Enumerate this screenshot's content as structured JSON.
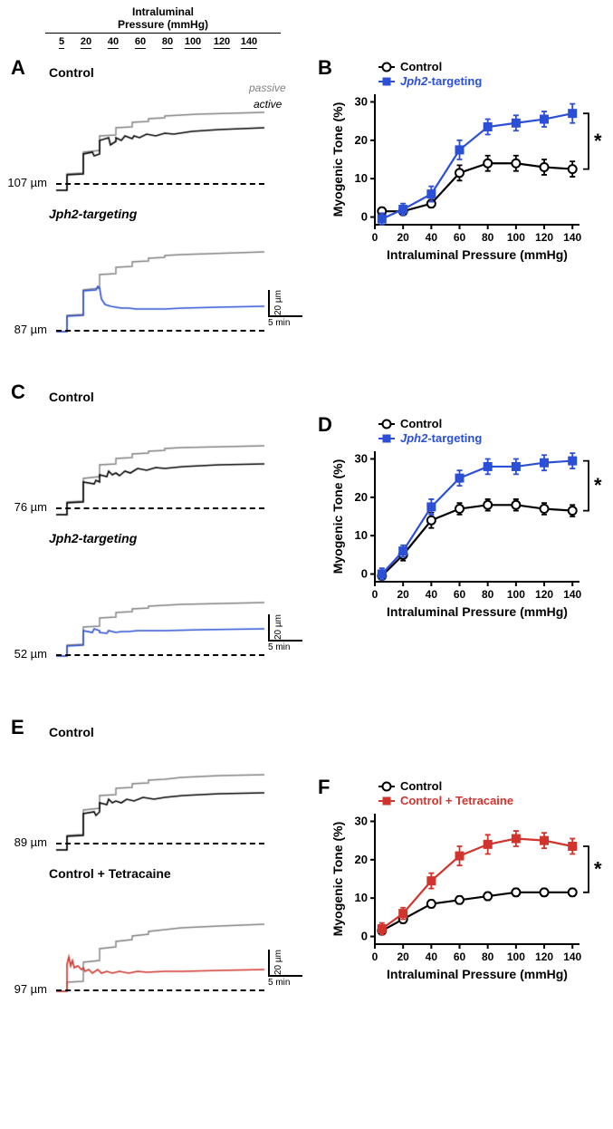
{
  "colors": {
    "control": "#000000",
    "jph2": "#2b4fd6",
    "tetracaine": "#d0342c",
    "passive": "#808080",
    "axis": "#000000",
    "bg": "#ffffff",
    "bracket": "#000000"
  },
  "typography": {
    "panel_label_pt": 22,
    "axis_label_pt": 14,
    "tick_pt": 12,
    "legend_pt": 13
  },
  "pressure_header": {
    "line1": "Intraluminal",
    "line2": "Pressure (mmHg)",
    "ticks": [
      "5",
      "20",
      "40",
      "60",
      "80",
      "100",
      "120",
      "140"
    ]
  },
  "panels": {
    "A": {
      "label": "A",
      "trace1": {
        "title": "Control",
        "baseline": "107 µm",
        "trace_color": "#000000"
      },
      "trace2": {
        "title": "Jph2-targeting",
        "baseline": "87 µm",
        "trace_color": "#2b4fd6"
      },
      "legend_passive": "passive",
      "legend_active": "active",
      "scalebar": {
        "y_label": "20 µm",
        "x_label": "5 min"
      }
    },
    "B": {
      "label": "B",
      "xlabel": "Intraluminal Pressure (mmHg)",
      "ylabel": "Myogenic Tone (%)",
      "xlim": [
        0,
        145
      ],
      "ylim": [
        -2,
        32
      ],
      "xtick_step": 20,
      "ytick_step": 10,
      "series": [
        {
          "name": "Control",
          "color": "#000000",
          "marker": "open-circle",
          "x": [
            5,
            20,
            40,
            60,
            80,
            100,
            120,
            140
          ],
          "y": [
            1.5,
            1.5,
            3.5,
            11.5,
            14,
            14,
            13,
            12.5
          ],
          "err": [
            1,
            1,
            1,
            2,
            2,
            2,
            2,
            2
          ]
        },
        {
          "name": "Jph2-targeting",
          "color": "#2b4fd6",
          "marker": "filled-square",
          "x": [
            5,
            20,
            40,
            60,
            80,
            100,
            120,
            140
          ],
          "y": [
            -0.5,
            2,
            6,
            17.5,
            23.5,
            24.5,
            25.5,
            27
          ],
          "err": [
            1.5,
            1.5,
            2,
            2.5,
            2,
            2,
            2,
            2.5
          ]
        }
      ],
      "legend": [
        {
          "label": "Control",
          "color": "#000000",
          "marker": "open-circle"
        },
        {
          "label": "Jph2-targeting",
          "color": "#2b4fd6",
          "marker": "filled-square",
          "italic": true
        }
      ],
      "significance": "*"
    },
    "C": {
      "label": "C",
      "trace1": {
        "title": "Control",
        "baseline": "76 µm",
        "trace_color": "#000000"
      },
      "trace2": {
        "title": "Jph2-targeting",
        "baseline": "52 µm",
        "trace_color": "#2b4fd6"
      },
      "scalebar": {
        "y_label": "20 µm",
        "x_label": "5 min"
      }
    },
    "D": {
      "label": "D",
      "xlabel": "Intraluminal Pressure (mmHg)",
      "ylabel": "Myogenic Tone (%)",
      "xlim": [
        0,
        145
      ],
      "ylim": [
        -2,
        32
      ],
      "xtick_step": 20,
      "ytick_step": 10,
      "series": [
        {
          "name": "Control",
          "color": "#000000",
          "marker": "open-circle",
          "x": [
            5,
            20,
            40,
            60,
            80,
            100,
            120,
            140
          ],
          "y": [
            -0.5,
            5,
            14,
            17,
            18,
            18,
            17,
            16.5
          ],
          "err": [
            1.5,
            1.5,
            2,
            1.5,
            1.5,
            1.5,
            1.5,
            1.5
          ]
        },
        {
          "name": "Jph2-targeting",
          "color": "#2b4fd6",
          "marker": "filled-square",
          "x": [
            5,
            20,
            40,
            60,
            80,
            100,
            120,
            140
          ],
          "y": [
            0,
            6,
            17.5,
            25,
            28,
            28,
            29,
            29.5
          ],
          "err": [
            1.5,
            1.5,
            2,
            2,
            2,
            2,
            2,
            2
          ]
        }
      ],
      "legend": [
        {
          "label": "Control",
          "color": "#000000",
          "marker": "open-circle"
        },
        {
          "label": "Jph2-targeting",
          "color": "#2b4fd6",
          "marker": "filled-square",
          "italic": true
        }
      ],
      "significance": "*"
    },
    "E": {
      "label": "E",
      "trace1": {
        "title": "Control",
        "baseline": "89 µm",
        "trace_color": "#000000"
      },
      "trace2": {
        "title": "Control + Tetracaine",
        "baseline": "97 µm",
        "trace_color": "#d0342c"
      },
      "scalebar": {
        "y_label": "20 µm",
        "x_label": "5 min"
      }
    },
    "F": {
      "label": "F",
      "xlabel": "Intraluminal Pressure (mmHg)",
      "ylabel": "Myogenic Tone (%)",
      "xlim": [
        0,
        145
      ],
      "ylim": [
        -2,
        32
      ],
      "xtick_step": 20,
      "ytick_step": 10,
      "series": [
        {
          "name": "Control",
          "color": "#000000",
          "marker": "open-circle",
          "x": [
            5,
            20,
            40,
            60,
            80,
            100,
            120,
            140
          ],
          "y": [
            1.5,
            4.5,
            8.5,
            9.5,
            10.5,
            11.5,
            11.5,
            11.5
          ],
          "err": [
            1,
            1,
            1,
            1,
            1,
            1,
            1,
            1
          ]
        },
        {
          "name": "Control + Tetracaine",
          "color": "#d0342c",
          "marker": "filled-square",
          "x": [
            5,
            20,
            40,
            60,
            80,
            100,
            120,
            140
          ],
          "y": [
            2,
            6,
            14.5,
            21,
            24,
            25.5,
            25,
            23.5
          ],
          "err": [
            1.5,
            1.5,
            2,
            2.5,
            2.5,
            2,
            2,
            2
          ]
        }
      ],
      "legend": [
        {
          "label": "Control",
          "color": "#000000",
          "marker": "open-circle"
        },
        {
          "label": "Control + Tetracaine",
          "color": "#d0342c",
          "marker": "filled-square"
        }
      ],
      "significance": "*"
    }
  },
  "traces": {
    "A1": {
      "passive": [
        [
          0,
          0
        ],
        [
          12,
          0
        ],
        [
          12,
          18
        ],
        [
          30,
          19
        ],
        [
          30,
          42
        ],
        [
          48,
          44
        ],
        [
          48,
          60
        ],
        [
          66,
          61
        ],
        [
          66,
          69
        ],
        [
          84,
          70
        ],
        [
          84,
          75
        ],
        [
          102,
          76
        ],
        [
          102,
          79
        ],
        [
          120,
          80
        ],
        [
          120,
          82
        ],
        [
          138,
          83
        ],
        [
          156,
          84
        ],
        [
          230,
          86
        ]
      ],
      "active": [
        [
          0,
          0
        ],
        [
          12,
          0
        ],
        [
          12,
          17
        ],
        [
          30,
          18
        ],
        [
          30,
          40
        ],
        [
          40,
          42
        ],
        [
          42,
          38
        ],
        [
          48,
          40
        ],
        [
          48,
          55
        ],
        [
          58,
          58
        ],
        [
          60,
          50
        ],
        [
          66,
          54
        ],
        [
          66,
          58
        ],
        [
          72,
          55
        ],
        [
          76,
          60
        ],
        [
          84,
          57
        ],
        [
          86,
          60
        ],
        [
          92,
          58
        ],
        [
          100,
          62
        ],
        [
          110,
          60
        ],
        [
          120,
          63
        ],
        [
          130,
          62
        ],
        [
          150,
          65
        ],
        [
          180,
          67
        ],
        [
          230,
          69
        ]
      ]
    },
    "A2": {
      "passive": [
        [
          0,
          0
        ],
        [
          12,
          0
        ],
        [
          12,
          18
        ],
        [
          30,
          19
        ],
        [
          30,
          46
        ],
        [
          48,
          48
        ],
        [
          48,
          63
        ],
        [
          66,
          64
        ],
        [
          66,
          71
        ],
        [
          84,
          72
        ],
        [
          84,
          77
        ],
        [
          102,
          78
        ],
        [
          102,
          81
        ],
        [
          120,
          82
        ],
        [
          120,
          84
        ],
        [
          138,
          85
        ],
        [
          230,
          88
        ]
      ],
      "active": [
        [
          0,
          0
        ],
        [
          12,
          0
        ],
        [
          12,
          17
        ],
        [
          30,
          18
        ],
        [
          30,
          45
        ],
        [
          44,
          46
        ],
        [
          46,
          50
        ],
        [
          48,
          48
        ],
        [
          50,
          36
        ],
        [
          54,
          30
        ],
        [
          60,
          28
        ],
        [
          66,
          27
        ],
        [
          72,
          26
        ],
        [
          80,
          26
        ],
        [
          88,
          25
        ],
        [
          96,
          25
        ],
        [
          104,
          25
        ],
        [
          120,
          25
        ],
        [
          140,
          26
        ],
        [
          180,
          27
        ],
        [
          230,
          28
        ]
      ]
    },
    "C1": {
      "passive": [
        [
          0,
          0
        ],
        [
          12,
          0
        ],
        [
          12,
          14
        ],
        [
          30,
          15
        ],
        [
          30,
          40
        ],
        [
          48,
          42
        ],
        [
          48,
          55
        ],
        [
          66,
          56
        ],
        [
          66,
          62
        ],
        [
          84,
          63
        ],
        [
          84,
          67
        ],
        [
          102,
          68
        ],
        [
          102,
          70
        ],
        [
          120,
          71
        ],
        [
          120,
          73
        ],
        [
          138,
          74
        ],
        [
          230,
          76
        ]
      ],
      "active": [
        [
          0,
          0
        ],
        [
          12,
          0
        ],
        [
          12,
          13
        ],
        [
          30,
          14
        ],
        [
          30,
          36
        ],
        [
          42,
          34
        ],
        [
          44,
          38
        ],
        [
          48,
          36
        ],
        [
          48,
          44
        ],
        [
          56,
          42
        ],
        [
          58,
          48
        ],
        [
          62,
          44
        ],
        [
          66,
          46
        ],
        [
          70,
          43
        ],
        [
          76,
          48
        ],
        [
          82,
          46
        ],
        [
          90,
          51
        ],
        [
          100,
          49
        ],
        [
          110,
          52
        ],
        [
          120,
          51
        ],
        [
          140,
          53
        ],
        [
          180,
          55
        ],
        [
          230,
          56
        ]
      ]
    },
    "C2": {
      "passive": [
        [
          0,
          0
        ],
        [
          12,
          0
        ],
        [
          12,
          12
        ],
        [
          30,
          13
        ],
        [
          30,
          32
        ],
        [
          48,
          33
        ],
        [
          48,
          42
        ],
        [
          66,
          43
        ],
        [
          66,
          48
        ],
        [
          84,
          49
        ],
        [
          84,
          52
        ],
        [
          102,
          53
        ],
        [
          102,
          55
        ],
        [
          120,
          56
        ],
        [
          138,
          57
        ],
        [
          230,
          59
        ]
      ],
      "active": [
        [
          0,
          0
        ],
        [
          12,
          0
        ],
        [
          12,
          11
        ],
        [
          30,
          12
        ],
        [
          30,
          28
        ],
        [
          40,
          26
        ],
        [
          42,
          30
        ],
        [
          48,
          28
        ],
        [
          48,
          26
        ],
        [
          56,
          25
        ],
        [
          58,
          28
        ],
        [
          62,
          27
        ],
        [
          66,
          26
        ],
        [
          72,
          27
        ],
        [
          80,
          27
        ],
        [
          90,
          28
        ],
        [
          100,
          28
        ],
        [
          120,
          28
        ],
        [
          160,
          29
        ],
        [
          230,
          30
        ]
      ]
    },
    "E1": {
      "passive": [
        [
          0,
          0
        ],
        [
          12,
          0
        ],
        [
          12,
          16
        ],
        [
          30,
          17
        ],
        [
          30,
          44
        ],
        [
          48,
          46
        ],
        [
          48,
          60
        ],
        [
          66,
          61
        ],
        [
          66,
          68
        ],
        [
          84,
          69
        ],
        [
          84,
          73
        ],
        [
          102,
          74
        ],
        [
          102,
          77
        ],
        [
          120,
          78
        ],
        [
          138,
          80
        ],
        [
          180,
          82
        ],
        [
          230,
          83
        ]
      ],
      "active": [
        [
          0,
          0
        ],
        [
          12,
          0
        ],
        [
          12,
          15
        ],
        [
          30,
          16
        ],
        [
          30,
          40
        ],
        [
          42,
          42
        ],
        [
          44,
          38
        ],
        [
          48,
          42
        ],
        [
          48,
          52
        ],
        [
          56,
          50
        ],
        [
          58,
          56
        ],
        [
          62,
          52
        ],
        [
          66,
          54
        ],
        [
          72,
          52
        ],
        [
          78,
          56
        ],
        [
          86,
          54
        ],
        [
          96,
          58
        ],
        [
          108,
          56
        ],
        [
          120,
          58
        ],
        [
          140,
          60
        ],
        [
          180,
          62
        ],
        [
          230,
          63
        ]
      ]
    },
    "E2": {
      "passive": [
        [
          0,
          0
        ],
        [
          12,
          0
        ],
        [
          12,
          10
        ],
        [
          30,
          11
        ],
        [
          30,
          32
        ],
        [
          48,
          34
        ],
        [
          48,
          47
        ],
        [
          66,
          49
        ],
        [
          66,
          55
        ],
        [
          84,
          57
        ],
        [
          84,
          61
        ],
        [
          102,
          63
        ],
        [
          102,
          66
        ],
        [
          120,
          68
        ],
        [
          138,
          70
        ],
        [
          180,
          72
        ],
        [
          230,
          74
        ]
      ],
      "active": [
        [
          0,
          0
        ],
        [
          12,
          0
        ],
        [
          12,
          30
        ],
        [
          14,
          38
        ],
        [
          16,
          28
        ],
        [
          18,
          34
        ],
        [
          20,
          26
        ],
        [
          24,
          28
        ],
        [
          28,
          24
        ],
        [
          30,
          26
        ],
        [
          32,
          22
        ],
        [
          36,
          24
        ],
        [
          40,
          20
        ],
        [
          46,
          24
        ],
        [
          50,
          20
        ],
        [
          56,
          22
        ],
        [
          62,
          20
        ],
        [
          70,
          22
        ],
        [
          80,
          20
        ],
        [
          90,
          22
        ],
        [
          100,
          21
        ],
        [
          120,
          22
        ],
        [
          140,
          22
        ],
        [
          180,
          23
        ],
        [
          230,
          24
        ]
      ]
    }
  }
}
